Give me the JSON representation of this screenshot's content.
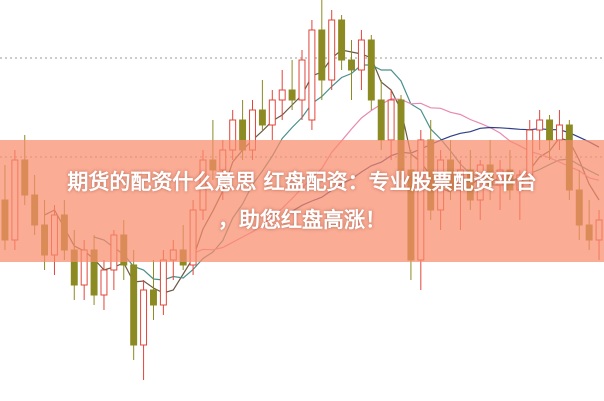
{
  "headline": {
    "line1": "期货的配资什么意思 红盘配资：专业股票配资平台",
    "line2": "，助您红盘高涨！"
  },
  "chart_data": {
    "type": "candlestick",
    "title": "",
    "grid": "dotted horizontal",
    "colors": {
      "up": "#e0453a",
      "down": "#8c8a22",
      "ma5": "#6b5a45",
      "ma10": "#4b8f8c",
      "ma20": "#e88ab0",
      "ma30": "#2f3f86",
      "banner": "#fa8c6c"
    },
    "moving_averages": [
      5,
      10,
      20,
      30
    ],
    "ohlc": [
      [
        200,
        235,
        150,
        160
      ],
      [
        160,
        250,
        150,
        240
      ],
      [
        240,
        265,
        195,
        205
      ],
      [
        205,
        225,
        165,
        175
      ],
      [
        175,
        200,
        130,
        145
      ],
      [
        145,
        195,
        125,
        185
      ],
      [
        185,
        200,
        140,
        150
      ],
      [
        150,
        170,
        100,
        115
      ],
      [
        115,
        160,
        100,
        150
      ],
      [
        150,
        165,
        95,
        105
      ],
      [
        105,
        140,
        90,
        130
      ],
      [
        130,
        170,
        110,
        165
      ],
      [
        165,
        180,
        120,
        135
      ],
      [
        135,
        150,
        40,
        55
      ],
      [
        55,
        120,
        20,
        110
      ],
      [
        110,
        140,
        80,
        95
      ],
      [
        95,
        150,
        85,
        140
      ],
      [
        140,
        160,
        120,
        150
      ],
      [
        150,
        175,
        130,
        135
      ],
      [
        135,
        200,
        125,
        190
      ],
      [
        190,
        250,
        180,
        240
      ],
      [
        240,
        280,
        220,
        230
      ],
      [
        230,
        260,
        200,
        250
      ],
      [
        250,
        290,
        240,
        280
      ],
      [
        280,
        300,
        240,
        250
      ],
      [
        250,
        300,
        240,
        290
      ],
      [
        290,
        320,
        270,
        275
      ],
      [
        275,
        310,
        260,
        300
      ],
      [
        300,
        330,
        280,
        310
      ],
      [
        310,
        340,
        290,
        300
      ],
      [
        300,
        350,
        280,
        340
      ],
      [
        280,
        380,
        270,
        370
      ],
      [
        370,
        400,
        300,
        320
      ],
      [
        320,
        390,
        310,
        380
      ],
      [
        380,
        385,
        330,
        340
      ],
      [
        340,
        360,
        300,
        330
      ],
      [
        330,
        370,
        310,
        360
      ],
      [
        360,
        365,
        290,
        300
      ],
      [
        300,
        320,
        250,
        260
      ],
      [
        260,
        310,
        240,
        300
      ],
      [
        300,
        305,
        220,
        230
      ],
      [
        230,
        250,
        120,
        140
      ],
      [
        140,
        270,
        110,
        260
      ],
      [
        260,
        280,
        180,
        190
      ],
      [
        190,
        250,
        170,
        240
      ],
      [
        240,
        260,
        200,
        210
      ],
      [
        210,
        240,
        170,
        230
      ],
      [
        230,
        250,
        190,
        200
      ],
      [
        200,
        240,
        180,
        235
      ],
      [
        235,
        260,
        200,
        215
      ],
      [
        215,
        240,
        190,
        230
      ],
      [
        230,
        250,
        200,
        210
      ],
      [
        210,
        230,
        180,
        225
      ],
      [
        225,
        280,
        215,
        270
      ],
      [
        270,
        290,
        250,
        280
      ],
      [
        280,
        285,
        240,
        260
      ],
      [
        260,
        290,
        250,
        275
      ],
      [
        275,
        280,
        200,
        210
      ],
      [
        210,
        230,
        160,
        175
      ],
      [
        175,
        200,
        150,
        160
      ],
      [
        160,
        190,
        140,
        180
      ]
    ],
    "gridlines": [
      342,
      243
    ]
  }
}
